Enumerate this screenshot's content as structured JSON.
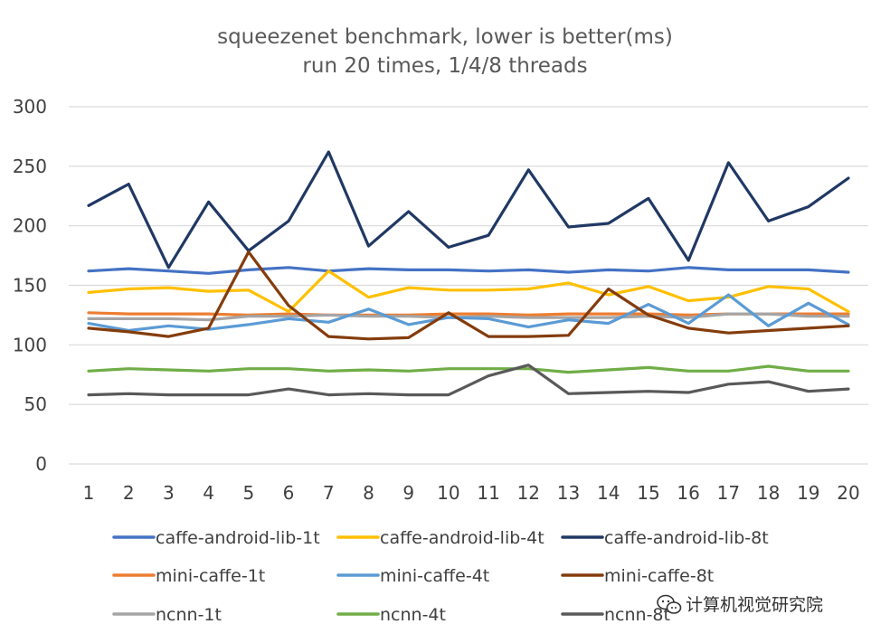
{
  "chart_data": {
    "type": "line",
    "title": "squeezenet benchmark, lower is better(ms)",
    "subtitle": "run 20 times, 1/4/8 threads",
    "xlabel": "",
    "ylabel": "",
    "ylim": [
      0,
      300
    ],
    "yticks": [
      "0",
      "50",
      "100",
      "150",
      "200",
      "250",
      "300"
    ],
    "categories": [
      "1",
      "2",
      "3",
      "4",
      "5",
      "6",
      "7",
      "8",
      "9",
      "10",
      "11",
      "12",
      "13",
      "14",
      "15",
      "16",
      "17",
      "18",
      "19",
      "20"
    ],
    "grid": true,
    "legend_position": "bottom",
    "series": [
      {
        "name": "caffe-android-lib-1t",
        "color": "#4472C4",
        "values": [
          162,
          164,
          162,
          160,
          163,
          165,
          162,
          164,
          163,
          163,
          162,
          163,
          161,
          163,
          162,
          165,
          163,
          163,
          163,
          161
        ]
      },
      {
        "name": "mini-caffe-1t",
        "color": "#ED7D31",
        "values": [
          127,
          126,
          126,
          126,
          125,
          126,
          125,
          125,
          125,
          126,
          126,
          125,
          126,
          126,
          126,
          125,
          126,
          126,
          126,
          126
        ]
      },
      {
        "name": "ncnn-1t",
        "color": "#A5A5A5",
        "values": [
          122,
          122,
          122,
          121,
          124,
          124,
          125,
          124,
          124,
          123,
          124,
          123,
          123,
          123,
          124,
          123,
          126,
          126,
          124,
          124
        ]
      },
      {
        "name": "caffe-android-lib-4t",
        "color": "#FFC000",
        "values": [
          144,
          147,
          148,
          145,
          146,
          128,
          162,
          140,
          148,
          146,
          146,
          147,
          152,
          142,
          149,
          137,
          140,
          149,
          147,
          128
        ]
      },
      {
        "name": "mini-caffe-4t",
        "color": "#5B9BD5",
        "values": [
          118,
          112,
          116,
          113,
          117,
          122,
          119,
          130,
          117,
          123,
          122,
          115,
          121,
          118,
          134,
          118,
          142,
          116,
          135,
          117
        ]
      },
      {
        "name": "ncnn-4t",
        "color": "#70AD47",
        "values": [
          78,
          80,
          79,
          78,
          80,
          80,
          78,
          79,
          78,
          80,
          80,
          80,
          77,
          79,
          81,
          78,
          78,
          82,
          78,
          78
        ]
      },
      {
        "name": "caffe-android-lib-8t",
        "color": "#203864",
        "values": [
          217,
          235,
          165,
          220,
          179,
          204,
          262,
          183,
          212,
          182,
          192,
          247,
          199,
          202,
          223,
          171,
          253,
          204,
          216,
          240
        ]
      },
      {
        "name": "mini-caffe-8t",
        "color": "#843C0C",
        "values": [
          114,
          111,
          107,
          114,
          178,
          133,
          107,
          105,
          106,
          127,
          107,
          107,
          108,
          147,
          125,
          114,
          110,
          112,
          114,
          116
        ]
      },
      {
        "name": "ncnn-8t",
        "color": "#595959",
        "values": [
          58,
          59,
          58,
          58,
          58,
          63,
          58,
          59,
          58,
          58,
          74,
          83,
          59,
          60,
          61,
          60,
          67,
          69,
          61,
          63
        ]
      }
    ]
  },
  "watermark": {
    "text": "计算机视觉研究院",
    "icon": "wechat-icon"
  }
}
